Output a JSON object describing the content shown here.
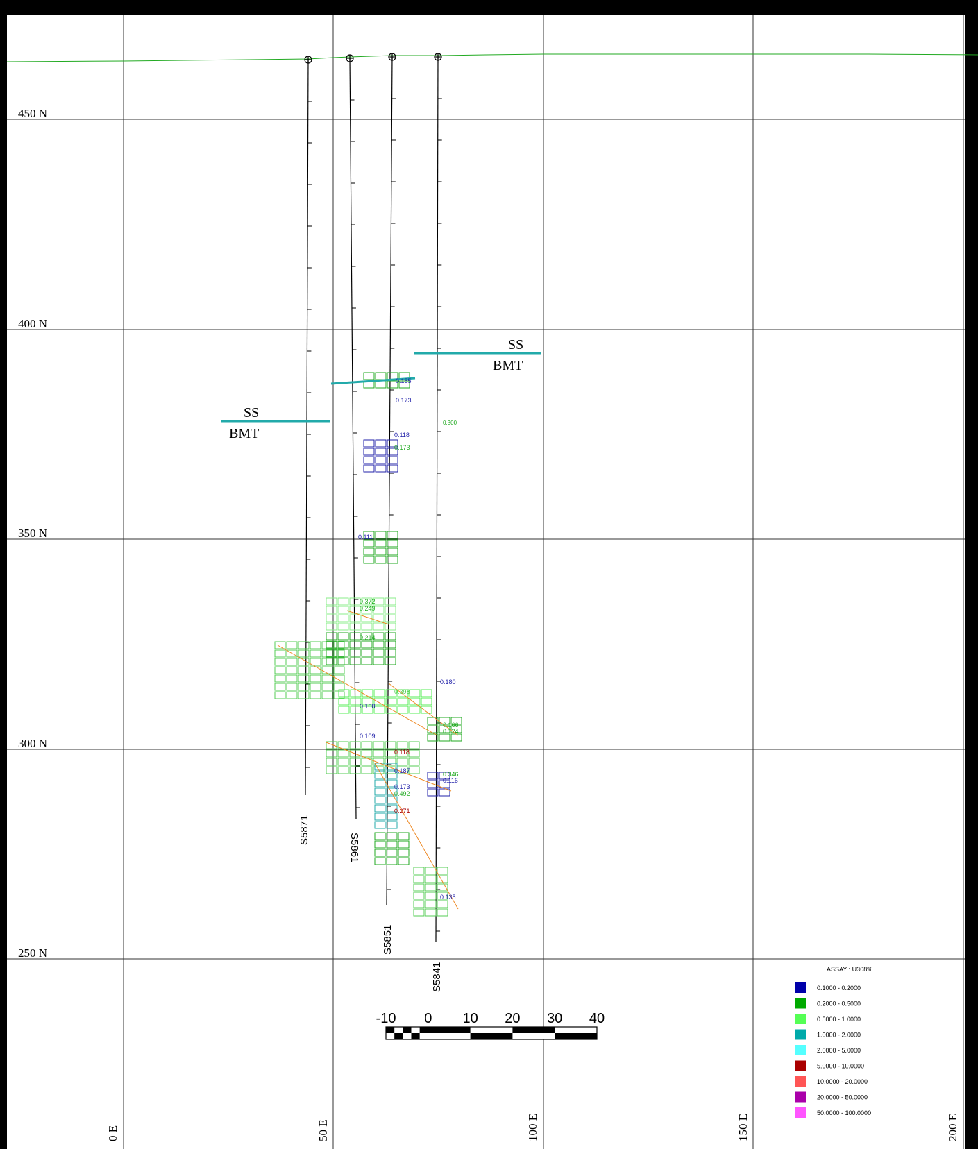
{
  "grid": {
    "northings": [
      "450 N",
      "400 N",
      "350 N",
      "300 N",
      "250 N"
    ],
    "eastings": [
      "0 E",
      "50 E",
      "100 E",
      "150 E",
      "200 E"
    ]
  },
  "holes": [
    {
      "name": "S5871"
    },
    {
      "name": "S5861"
    },
    {
      "name": "S5851"
    },
    {
      "name": "S5841"
    }
  ],
  "contacts": [
    {
      "upper": "SS",
      "lower": "BMT"
    },
    {
      "upper": "SS",
      "lower": "BMT"
    }
  ],
  "assay_labels": [
    "0.155",
    "0.173",
    "0.300",
    "0.118",
    "0.173",
    "0.111",
    "0.180",
    "0.118",
    "0.173",
    "0.271",
    "0.135",
    "0.124",
    "0.116",
    "0.109",
    "0.108",
    "0.166",
    "0.346",
    "0.492",
    "0.187",
    "0.214",
    "0.372",
    "0.249",
    "0.398"
  ],
  "scale_bar": {
    "ticks": [
      "-10",
      "0",
      "10",
      "20",
      "30",
      "40"
    ]
  },
  "legend": {
    "title": "ASSAY : U308%",
    "items": [
      {
        "range": "0.1000 -    0.2000",
        "color": "#0000aa"
      },
      {
        "range": "0.2000 -    0.5000",
        "color": "#00aa00"
      },
      {
        "range": "0.5000 -    1.0000",
        "color": "#55ff55"
      },
      {
        "range": "1.0000 -    2.0000",
        "color": "#00aaaa"
      },
      {
        "range": "2.0000 -    5.0000",
        "color": "#55ffff"
      },
      {
        "range": "5.0000 -   10.0000",
        "color": "#aa0000"
      },
      {
        "range": "10.0000 -   20.0000",
        "color": "#ff5555"
      },
      {
        "range": "20.0000 -   50.0000",
        "color": "#aa00aa"
      },
      {
        "range": "50.0000 -  100.0000",
        "color": "#ff55ff"
      }
    ]
  }
}
